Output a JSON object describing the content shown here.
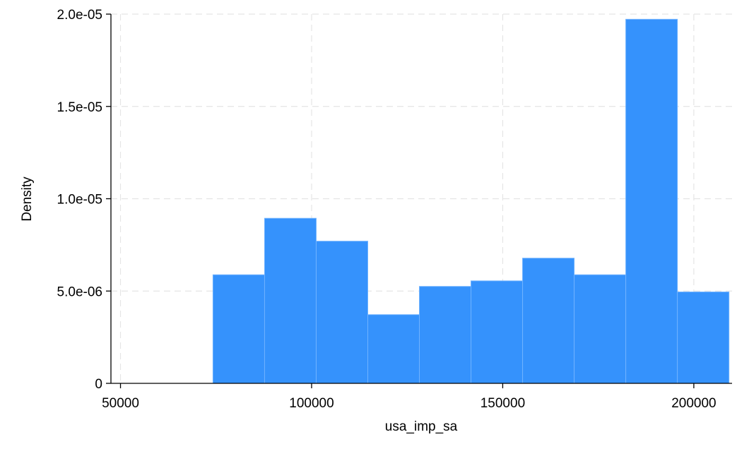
{
  "chart_data": {
    "type": "bar",
    "subtype": "histogram",
    "title": "",
    "xlabel": "usa_imp_sa",
    "ylabel": "Density",
    "xlim": [
      47500,
      210000
    ],
    "ylim": [
      0,
      2e-05
    ],
    "x_ticks": [
      50000,
      100000,
      150000,
      200000
    ],
    "x_tick_labels": [
      "50000",
      "100000",
      "150000",
      "200000"
    ],
    "y_ticks": [
      0,
      5e-06,
      1e-05,
      1.5e-05,
      2e-05
    ],
    "y_tick_labels": [
      "0",
      "5.0e-06",
      "1.0e-05",
      "1.5e-05",
      "2.0e-05"
    ],
    "bins": [
      {
        "x0": 74200,
        "x1": 87700,
        "density": 5.88e-06
      },
      {
        "x0": 87700,
        "x1": 101200,
        "density": 8.94e-06
      },
      {
        "x0": 101200,
        "x1": 114700,
        "density": 7.7e-06
      },
      {
        "x0": 114700,
        "x1": 128200,
        "density": 3.72e-06
      },
      {
        "x0": 128200,
        "x1": 141700,
        "density": 5.25e-06
      },
      {
        "x0": 141700,
        "x1": 155200,
        "density": 5.55e-06
      },
      {
        "x0": 155200,
        "x1": 168700,
        "density": 6.78e-06
      },
      {
        "x0": 168700,
        "x1": 182200,
        "density": 5.88e-06
      },
      {
        "x0": 182200,
        "x1": 195700,
        "density": 1.972e-05
      },
      {
        "x0": 195700,
        "x1": 209200,
        "density": 4.95e-06
      }
    ],
    "grid": true,
    "colors": {
      "bar_fill": "#3592fc",
      "bar_edge": "#6fb2ff",
      "grid": "#e5e5e5",
      "axis": "#000000"
    }
  }
}
